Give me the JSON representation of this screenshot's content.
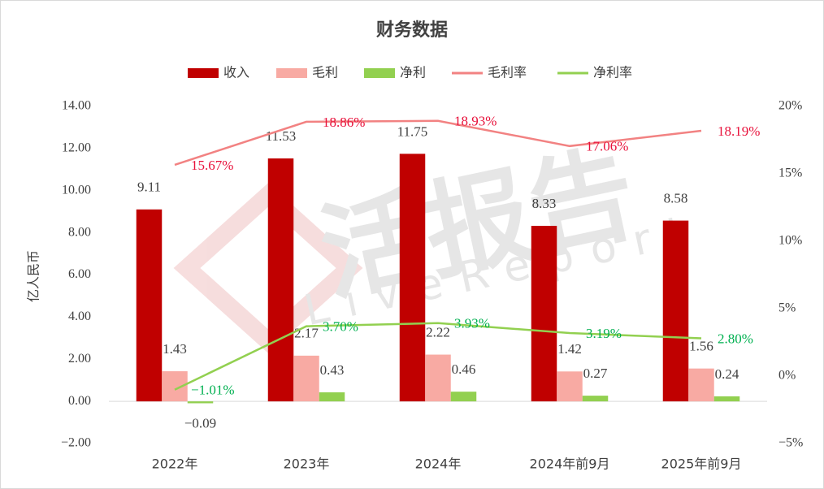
{
  "chart_data": {
    "type": "combo",
    "title": "财务数据",
    "watermark": "活报告",
    "watermark_sub": "LiveReport",
    "y_label": "亿人民币",
    "categories": [
      "2022年",
      "2023年",
      "2024年",
      "2024年前9月",
      "2025年前9月"
    ],
    "series": [
      {
        "name": "收入",
        "type": "bar",
        "color": "#c00000",
        "values": [
          9.11,
          11.53,
          11.75,
          8.33,
          8.58
        ]
      },
      {
        "name": "毛利",
        "type": "bar",
        "color": "#f8aaa3",
        "values": [
          1.43,
          2.17,
          2.22,
          1.42,
          1.56
        ]
      },
      {
        "name": "净利",
        "type": "bar",
        "color": "#92d050",
        "values": [
          -0.09,
          0.43,
          0.46,
          0.27,
          0.24
        ],
        "value_labels": [
          "−0.09",
          "0.43",
          "0.46",
          "0.27",
          "0.24"
        ]
      },
      {
        "name": "毛利率",
        "type": "line",
        "axis": "y2",
        "color": "#f28282",
        "label_color": "#e8103a",
        "values": [
          15.67,
          18.86,
          18.93,
          17.06,
          18.19
        ],
        "value_labels": [
          "15.67%",
          "18.86%",
          "18.93%",
          "17.06%",
          "18.19%"
        ]
      },
      {
        "name": "净利率",
        "type": "line",
        "axis": "y2",
        "color": "#92d050",
        "label_color": "#00b050",
        "values": [
          -1.01,
          3.7,
          3.93,
          3.19,
          2.8
        ],
        "value_labels": [
          "−1.01%",
          "3.70%",
          "3.93%",
          "3.19%",
          "2.80%"
        ]
      }
    ],
    "ylim": [
      -2,
      14
    ],
    "yticks": [
      {
        "value": -2,
        "label": "−2.00"
      },
      {
        "value": 0,
        "label": "0.00"
      },
      {
        "value": 2,
        "label": "2.00"
      },
      {
        "value": 4,
        "label": "4.00"
      },
      {
        "value": 6,
        "label": "6.00"
      },
      {
        "value": 8,
        "label": "8.00"
      },
      {
        "value": 10,
        "label": "10.00"
      },
      {
        "value": 12,
        "label": "12.00"
      },
      {
        "value": 14,
        "label": "14.00"
      }
    ],
    "y2lim": [
      -5,
      20
    ],
    "y2ticks": [
      {
        "value": -5,
        "label": "−5%"
      },
      {
        "value": 0,
        "label": "0%"
      },
      {
        "value": 5,
        "label": "5%"
      },
      {
        "value": 10,
        "label": "10%"
      },
      {
        "value": 15,
        "label": "15%"
      },
      {
        "value": 20,
        "label": "20%"
      }
    ],
    "legend": "top"
  }
}
